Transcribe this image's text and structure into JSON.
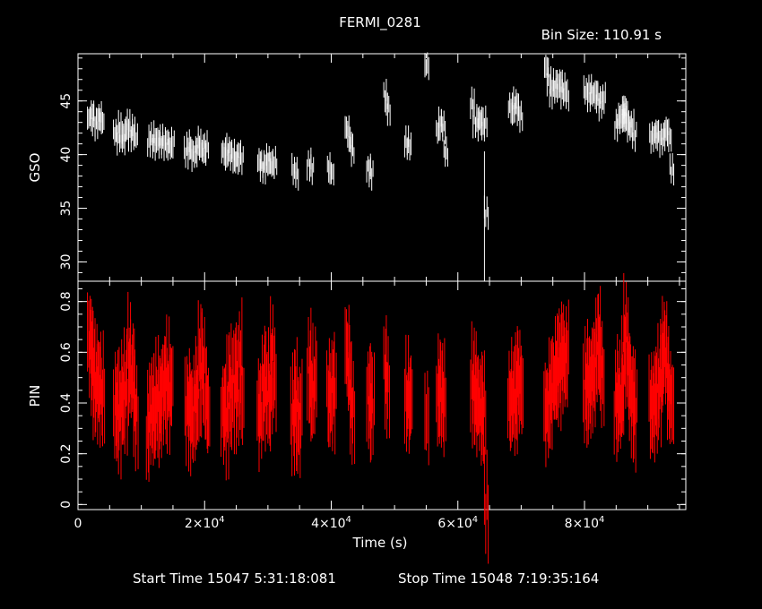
{
  "title": "FERMI_0281",
  "bin_size": "Bin Size:  110.91  s",
  "footer": {
    "start": "Start Time 15047  5:31:18:081",
    "stop": "Stop Time 15048  7:19:35:164"
  },
  "colors": {
    "gso": "#ffffff",
    "pin": "#ff0000",
    "axes": "#ffffff",
    "background": "#000000"
  },
  "chart_data": [
    {
      "type": "scatter",
      "ylabel": "GSO",
      "xlim": [
        0,
        96000
      ],
      "ylim": [
        28.2,
        49.4
      ],
      "yticks": [
        30,
        35,
        40,
        45
      ],
      "xticks": [
        0,
        20000,
        40000,
        60000,
        80000
      ],
      "segments": [
        {
          "x": [
            1500,
            1900,
            2300,
            2700,
            3100,
            3500
          ],
          "y": [
            43.4,
            43.9,
            43.1,
            42.8,
            43.6,
            43.0
          ]
        },
        {
          "x": [
            5600,
            6000,
            6400,
            6800,
            7200,
            7600,
            8000,
            8400,
            8800
          ],
          "y": [
            42.0,
            41.5,
            42.6,
            41.3,
            42.2,
            42.9,
            41.8,
            42.3,
            41.6
          ]
        },
        {
          "x": [
            11000,
            11400,
            11800,
            12200,
            12600,
            13000,
            13400,
            13800,
            14200,
            14600
          ],
          "y": [
            41.2,
            41.6,
            40.8,
            41.5,
            41.0,
            41.3,
            40.9,
            41.4,
            40.7,
            41.1
          ]
        },
        {
          "x": [
            16800,
            17200,
            17600,
            18000,
            18400,
            18800,
            19200,
            19600,
            20000
          ],
          "y": [
            40.2,
            41.0,
            40.5,
            39.9,
            40.4,
            41.2,
            40.6,
            40.1,
            40.8
          ]
        },
        {
          "x": [
            22700,
            23100,
            23500,
            23900,
            24300,
            24700,
            25100,
            25500
          ],
          "y": [
            40.3,
            39.7,
            40.5,
            39.8,
            40.0,
            39.4,
            40.2,
            39.6
          ]
        },
        {
          "x": [
            28400,
            28800,
            29200,
            29600,
            30000,
            30400,
            30800
          ],
          "y": [
            39.4,
            39.0,
            38.8,
            39.6,
            39.1,
            38.9,
            39.3
          ]
        },
        {
          "x": [
            33800,
            34200
          ],
          "y": [
            38.6,
            38.2
          ]
        },
        {
          "x": [
            36200,
            36600
          ],
          "y": [
            39.1,
            38.6
          ]
        },
        {
          "x": [
            39400,
            39800
          ],
          "y": [
            38.8,
            38.3
          ]
        },
        {
          "x": [
            42200,
            42600,
            43000
          ],
          "y": [
            42.5,
            41.3,
            40.4
          ]
        },
        {
          "x": [
            45600,
            46000
          ],
          "y": [
            38.8,
            38.2
          ]
        },
        {
          "x": [
            48300,
            48700
          ],
          "y": [
            45.5,
            44.2
          ]
        },
        {
          "x": [
            51600,
            52000
          ],
          "y": [
            41.2,
            40.7
          ]
        },
        {
          "x": [
            54800
          ],
          "y": [
            48.3
          ]
        },
        {
          "x": [
            56600,
            57000,
            57400,
            57800
          ],
          "y": [
            42.2,
            43.0,
            42.6,
            40.2
          ]
        },
        {
          "x": [
            62000,
            62400,
            62800,
            63200,
            63600,
            64000
          ],
          "y": [
            44.8,
            43.1,
            42.7,
            43.4,
            42.5,
            43.0
          ]
        },
        {
          "x": [
            64200
          ],
          "y": [
            34.6
          ]
        },
        {
          "x": [
            68000,
            68400,
            68800,
            69200,
            69600
          ],
          "y": [
            44.5,
            43.8,
            44.9,
            44.1,
            43.6
          ]
        },
        {
          "x": [
            73700,
            74100,
            74500,
            74900,
            75300,
            75700,
            76100,
            76500,
            76900
          ],
          "y": [
            48.2,
            46.9,
            45.8,
            46.5,
            46.0,
            46.8,
            45.7,
            46.3,
            45.5
          ]
        },
        {
          "x": [
            79900,
            80300,
            80700,
            81100,
            81500,
            81900,
            82300,
            82700
          ],
          "y": [
            45.9,
            45.4,
            46.1,
            45.6,
            45.9,
            45.2,
            44.7,
            45.3
          ]
        },
        {
          "x": [
            84800,
            85200,
            85600,
            85800,
            86000,
            86200,
            86400,
            86600,
            86800,
            87200,
            87600
          ],
          "y": [
            42.8,
            43.3,
            43.6,
            43.1,
            44.1,
            43.9,
            43.5,
            43.0,
            42.5,
            42.8,
            41.8
          ]
        },
        {
          "x": [
            90300,
            90700,
            91100,
            91500,
            91900,
            92300,
            92700,
            93100,
            93500
          ],
          "y": [
            41.6,
            41.9,
            42.2,
            41.7,
            41.3,
            41.8,
            42.4,
            41.5,
            38.6
          ]
        }
      ]
    },
    {
      "type": "scatter",
      "ylabel": "PIN",
      "xlabel": "Time (s)",
      "xlim": [
        0,
        96000
      ],
      "ylim": [
        -0.02,
        0.88
      ],
      "yticks": [
        0,
        0.2,
        0.4,
        0.6,
        0.8
      ],
      "xticks": [
        0,
        20000,
        40000,
        60000,
        80000
      ],
      "segments": [
        {
          "x": [
            1500,
            1800,
            2100,
            2400,
            2700,
            3000,
            3300,
            3600
          ],
          "y": [
            0.68,
            0.6,
            0.55,
            0.48,
            0.44,
            0.5,
            0.42,
            0.46
          ]
        },
        {
          "x": [
            5600,
            5900,
            6200,
            6500,
            6800,
            7100,
            7400,
            7700,
            8000,
            8300,
            8600,
            8900
          ],
          "y": [
            0.35,
            0.4,
            0.33,
            0.45,
            0.38,
            0.5,
            0.42,
            0.62,
            0.48,
            0.55,
            0.4,
            0.36
          ]
        },
        {
          "x": [
            10800,
            11100,
            11400,
            11700,
            12000,
            12300,
            12600,
            12900,
            13200,
            13500,
            13800,
            14100,
            14400
          ],
          "y": [
            0.3,
            0.35,
            0.4,
            0.32,
            0.38,
            0.44,
            0.36,
            0.42,
            0.5,
            0.45,
            0.52,
            0.4,
            0.48
          ]
        },
        {
          "x": [
            16900,
            17200,
            17500,
            17800,
            18100,
            18400,
            18700,
            19000,
            19300,
            19600,
            19900,
            20200
          ],
          "y": [
            0.36,
            0.42,
            0.39,
            0.33,
            0.4,
            0.45,
            0.38,
            0.62,
            0.48,
            0.55,
            0.42,
            0.37
          ]
        },
        {
          "x": [
            22600,
            22900,
            23200,
            23500,
            23800,
            24100,
            24400,
            24700,
            25000,
            25300,
            25600
          ],
          "y": [
            0.35,
            0.4,
            0.3,
            0.45,
            0.5,
            0.38,
            0.55,
            0.48,
            0.42,
            0.6,
            0.4
          ]
        },
        {
          "x": [
            28300,
            28600,
            28900,
            29200,
            29500,
            29800,
            30100,
            30400,
            30700
          ],
          "y": [
            0.4,
            0.35,
            0.48,
            0.42,
            0.52,
            0.38,
            0.45,
            0.6,
            0.5
          ]
        },
        {
          "x": [
            33600,
            33900,
            34200,
            34500,
            34800
          ],
          "y": [
            0.32,
            0.38,
            0.45,
            0.28,
            0.4
          ]
        },
        {
          "x": [
            36200,
            36500,
            36800,
            37100
          ],
          "y": [
            0.55,
            0.48,
            0.4,
            0.52
          ]
        },
        {
          "x": [
            39300,
            39600,
            39900,
            40200
          ],
          "y": [
            0.45,
            0.38,
            0.5,
            0.42
          ]
        },
        {
          "x": [
            42200,
            42500,
            42800,
            43100
          ],
          "y": [
            0.62,
            0.52,
            0.42,
            0.38
          ]
        },
        {
          "x": [
            45600,
            45900,
            46200
          ],
          "y": [
            0.45,
            0.4,
            0.38
          ]
        },
        {
          "x": [
            48300,
            48600
          ],
          "y": [
            0.52,
            0.48
          ]
        },
        {
          "x": [
            51600,
            51900,
            52200
          ],
          "y": [
            0.45,
            0.38,
            0.42
          ]
        },
        {
          "x": [
            54800
          ],
          "y": [
            0.35
          ]
        },
        {
          "x": [
            56600,
            56900,
            57200,
            57500
          ],
          "y": [
            0.4,
            0.46,
            0.42,
            0.44
          ]
        },
        {
          "x": [
            62000,
            62300,
            62600,
            62900,
            63200,
            63500,
            63800
          ],
          "y": [
            0.5,
            0.45,
            0.4,
            0.42,
            0.38,
            0.36,
            0.4
          ]
        },
        {
          "x": [
            64200
          ],
          "y": [
            0.0
          ]
        },
        {
          "x": [
            67900,
            68200,
            68500,
            68800,
            69100,
            69400,
            69700
          ],
          "y": [
            0.42,
            0.38,
            0.45,
            0.4,
            0.48,
            0.52,
            0.44
          ]
        },
        {
          "x": [
            73600,
            73900,
            74200,
            74500,
            74800,
            75100,
            75400,
            75700,
            76000,
            76300,
            76600,
            76900
          ],
          "y": [
            0.4,
            0.36,
            0.45,
            0.42,
            0.5,
            0.48,
            0.55,
            0.52,
            0.58,
            0.62,
            0.55,
            0.6
          ]
        },
        {
          "x": [
            79800,
            80100,
            80400,
            80700,
            81000,
            81300,
            81600,
            81900,
            82200,
            82500
          ],
          "y": [
            0.42,
            0.5,
            0.46,
            0.48,
            0.55,
            0.5,
            0.6,
            0.65,
            0.58,
            0.48
          ]
        },
        {
          "x": [
            84700,
            85000,
            85300,
            85600,
            85900,
            86200,
            86500,
            86800,
            87100,
            87400,
            87700
          ],
          "y": [
            0.4,
            0.45,
            0.38,
            0.42,
            0.55,
            0.68,
            0.6,
            0.5,
            0.45,
            0.4,
            0.35
          ]
        },
        {
          "x": [
            90200,
            90500,
            90800,
            91100,
            91400,
            91700,
            92000,
            92300,
            92600,
            92900,
            93200,
            93500
          ],
          "y": [
            0.4,
            0.36,
            0.45,
            0.4,
            0.5,
            0.44,
            0.55,
            0.62,
            0.58,
            0.48,
            0.45,
            0.4
          ]
        }
      ]
    }
  ]
}
